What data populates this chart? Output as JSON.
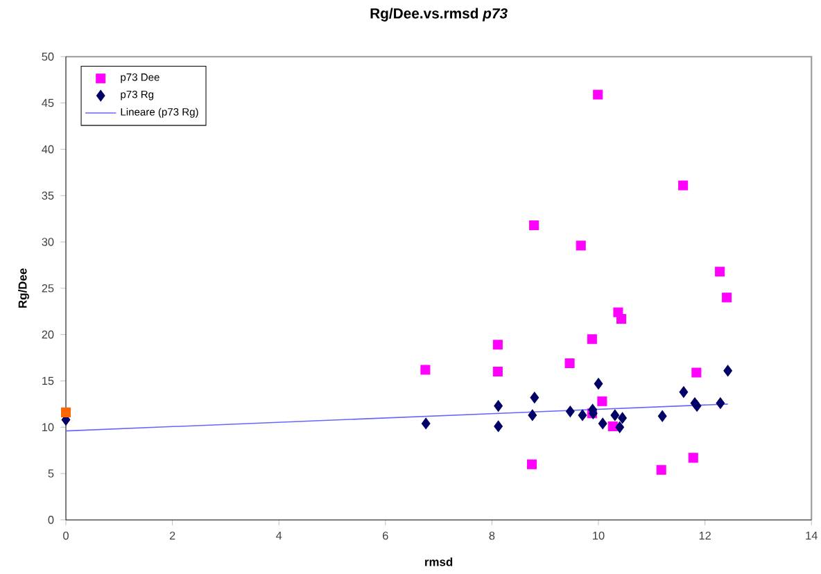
{
  "chart_data": {
    "type": "scatter",
    "title": "Rg/Dee.vs.rmsd *p73*",
    "xlabel": "rmsd",
    "ylabel": "Rg/Dee",
    "xlim": [
      0,
      14
    ],
    "xticks": [
      0,
      2,
      4,
      6,
      8,
      10,
      12,
      14
    ],
    "ylim": [
      0,
      50
    ],
    "yticks": [
      0,
      5,
      10,
      15,
      20,
      25,
      30,
      35,
      40,
      45,
      50
    ],
    "grid": false,
    "legend": "top left",
    "series": [
      {
        "name": "p73 Dee",
        "marker": "square",
        "color": "#ff00ff",
        "x": [
          6.75,
          8.11,
          8.11,
          8.75,
          8.79,
          9.46,
          9.67,
          9.88,
          9.88,
          9.99,
          10.07,
          10.27,
          10.37,
          10.43,
          11.18,
          11.59,
          11.78,
          11.84,
          12.28,
          12.41
        ],
        "values": [
          16.2,
          18.9,
          16.0,
          6.0,
          31.8,
          16.9,
          29.6,
          19.5,
          11.5,
          45.9,
          12.8,
          10.1,
          22.4,
          21.7,
          5.4,
          36.1,
          6.7,
          15.9,
          26.8,
          24.0
        ]
      },
      {
        "name": "p73 Rg",
        "marker": "diamond",
        "color": "#000066",
        "x": [
          0,
          6.76,
          8.12,
          8.12,
          8.8,
          8.76,
          9.47,
          9.7,
          9.89,
          9.9,
          10.0,
          10.08,
          10.31,
          10.45,
          10.4,
          11.2,
          11.6,
          11.81,
          11.85,
          12.29,
          12.43
        ],
        "values": [
          10.8,
          10.4,
          12.3,
          10.1,
          13.2,
          11.3,
          11.7,
          11.3,
          11.9,
          11.5,
          14.7,
          10.4,
          11.3,
          11.0,
          10.0,
          11.2,
          13.8,
          12.6,
          12.3,
          12.6,
          16.1
        ]
      },
      {
        "name": "Lineare (p73 Rg)",
        "type": "line",
        "marker": "none",
        "line_style": "solid",
        "color": "#6666ff",
        "x": [
          0,
          12.43
        ],
        "values": [
          9.6,
          12.5
        ]
      },
      {
        "marker": "square",
        "color": "#ff6600",
        "x": [
          0
        ],
        "values": [
          11.6
        ]
      }
    ]
  }
}
